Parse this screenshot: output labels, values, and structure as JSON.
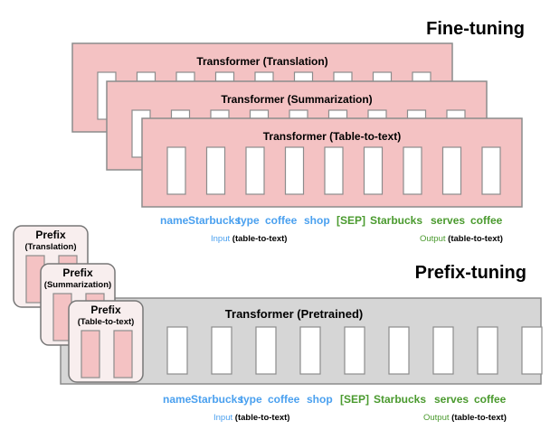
{
  "finetuning": {
    "title": "Fine-tuning",
    "transformers": [
      {
        "label": "Transformer (Translation)"
      },
      {
        "label": "Transformer (Summarization)"
      },
      {
        "label": "Transformer (Table-to-text)"
      }
    ]
  },
  "prefixtuning": {
    "title": "Prefix-tuning",
    "transformer_label": "Transformer  (Pretrained)",
    "prefixes": [
      {
        "title": "Prefix",
        "task": "(Translation)"
      },
      {
        "title": "Prefix",
        "task": "(Summarization)"
      },
      {
        "title": "Prefix",
        "task": "(Table-to-text)"
      }
    ]
  },
  "sequence": {
    "input_tokens": [
      "name",
      "Starbucks",
      "type",
      "coffee",
      "shop"
    ],
    "output_tokens": [
      "[SEP]",
      "Starbucks",
      "serves",
      "coffee"
    ],
    "input_label": "Input",
    "input_suffix": "(table-to-text)",
    "output_label": "Output",
    "output_suffix": "(table-to-text)"
  },
  "colors": {
    "finetune_fill": "#f4c2c3",
    "pretrained_fill": "#d6d6d6",
    "prefix_fill": "#f8eeee",
    "prefix_token": "#f4c2c3",
    "input_blue": "#4aa0ef",
    "output_green": "#4a9a2e",
    "border": "#8c8c8c"
  }
}
